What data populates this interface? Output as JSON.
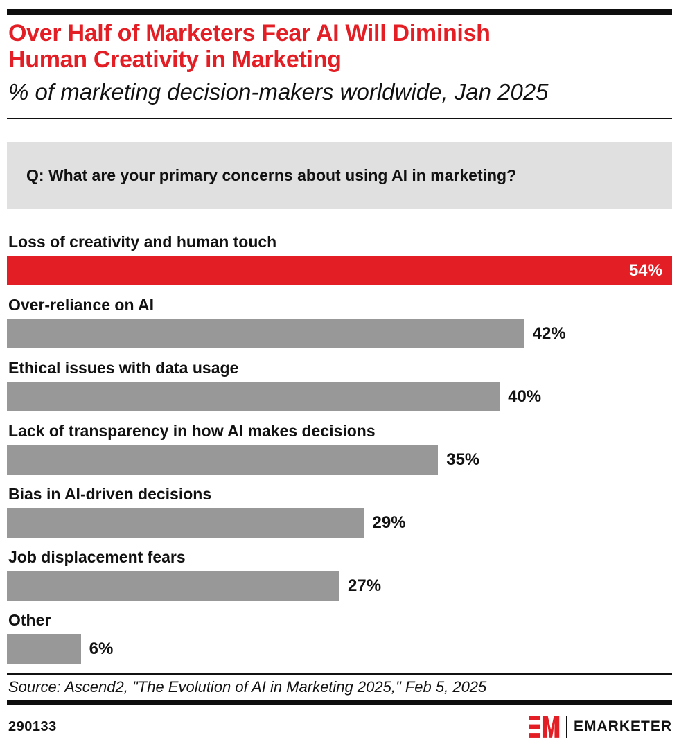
{
  "meta": {
    "accent_red": "#e31e24",
    "bar_gray": "#989898",
    "question_box_gray": "#e0e0e0",
    "rule_black": "#0e0e0e"
  },
  "header": {
    "title_line1": "Over Half of Marketers Fear AI Will Diminish",
    "title_line2": "Human Creativity in Marketing",
    "subtitle": "% of marketing decision-makers worldwide, Jan 2025"
  },
  "question": {
    "label": "Q: What are your primary concerns about using AI in marketing?"
  },
  "chart_data": {
    "type": "bar",
    "orientation": "horizontal",
    "title": "Over Half of Marketers Fear AI Will Diminish Human Creativity in Marketing",
    "subtitle": "% of marketing decision-makers worldwide, Jan 2025",
    "categories": [
      "Loss of creativity and human touch",
      "Over-reliance on AI",
      "Ethical issues with data usage",
      "Lack of transparency in how AI makes decisions",
      "Bias in AI-driven decisions",
      "Job displacement fears",
      "Other"
    ],
    "values": [
      54,
      42,
      40,
      35,
      29,
      27,
      6
    ],
    "value_labels": [
      "54%",
      "42%",
      "40%",
      "35%",
      "29%",
      "27%",
      "6%"
    ],
    "xlim": [
      0,
      54
    ],
    "highlight_index": 0,
    "highlight_color": "#e31e24",
    "bar_color": "#989898",
    "grid": false,
    "legend": false
  },
  "footer": {
    "source": "Source: Ascend2, \"The Evolution of AI in Marketing 2025,\" Feb 5, 2025",
    "chart_id": "290133",
    "brand_name": "EMARKETER"
  }
}
